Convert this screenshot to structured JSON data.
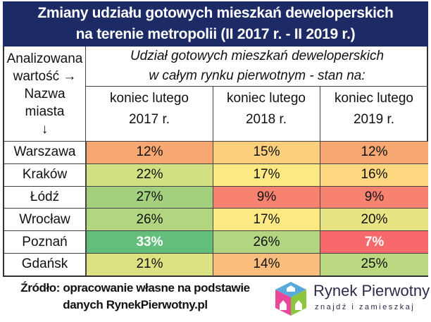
{
  "title": {
    "line1": "Zmiany udziału gotowych mieszkań deweloperskich",
    "line2": "na terenie metropolii (II 2017 r. - II 2019 r.)"
  },
  "header": {
    "axis_line1": "Analizowana",
    "axis_line2": "wartość →",
    "axis_line3": "Nazwa",
    "axis_line4": "miasta",
    "axis_line5": "↓",
    "sub_line1": "Udział gotowych mieszkań deweloperskich",
    "sub_line2": "w całym rynku pierwotnym - stan na:",
    "columns": [
      {
        "line1": "koniec lutego",
        "line2": "2017 r."
      },
      {
        "line1": "koniec lutego",
        "line2": "2018 r."
      },
      {
        "line1": "koniec lutego",
        "line2": "2019 r."
      }
    ]
  },
  "chart_data": {
    "type": "heatmap",
    "title": "Zmiany udziału gotowych mieszkań deweloperskich na terenie metropolii (II 2017 r. - II 2019 r.)",
    "categories": [
      "koniec lutego 2017 r.",
      "koniec lutego 2018 r.",
      "koniec lutego 2019 r."
    ],
    "rows": [
      {
        "name": "Warszawa",
        "values": [
          12,
          15,
          12
        ],
        "labels": [
          "12%",
          "15%",
          "12%"
        ],
        "colors": [
          "#f7a872",
          "#fbcf7c",
          "#f7a872"
        ]
      },
      {
        "name": "Kraków",
        "values": [
          22,
          17,
          16
        ],
        "labels": [
          "22%",
          "17%",
          "16%"
        ],
        "colors": [
          "#d3df83",
          "#fde983",
          "#fdd880"
        ]
      },
      {
        "name": "Łódź",
        "values": [
          27,
          9,
          9
        ],
        "labels": [
          "27%",
          "9%",
          "9%"
        ],
        "colors": [
          "#a3d07f",
          "#f7826f",
          "#f7826f"
        ]
      },
      {
        "name": "Wrocław",
        "values": [
          26,
          17,
          20
        ],
        "labels": [
          "26%",
          "17%",
          "20%"
        ],
        "colors": [
          "#b1d580",
          "#fde983",
          "#e6e483"
        ]
      },
      {
        "name": "Poznań",
        "values": [
          33,
          26,
          7
        ],
        "labels": [
          "33%",
          "26%",
          "7%"
        ],
        "colors": [
          "#63be7b",
          "#b1d580",
          "#f8696b"
        ],
        "bold_white": [
          true,
          false,
          true
        ]
      },
      {
        "name": "Gdańsk",
        "values": [
          21,
          14,
          25
        ],
        "labels": [
          "21%",
          "14%",
          "25%"
        ],
        "colors": [
          "#dce182",
          "#fbbd7b",
          "#bcd881"
        ]
      }
    ]
  },
  "source": {
    "line1": "Źródło: opracowanie własne na podstawie",
    "line2": "danych RynekPierwotny.pl"
  },
  "logo": {
    "name": "Rynek Pierwotny",
    "tagline": "znajdź i zamieszkaj"
  }
}
